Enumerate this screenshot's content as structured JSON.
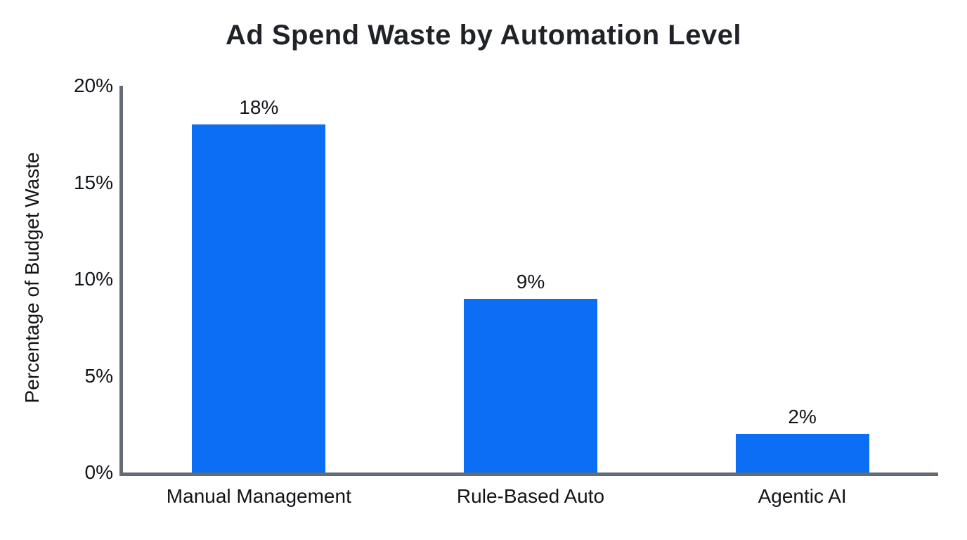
{
  "chart_data": {
    "type": "bar",
    "title": "Ad Spend Waste by Automation Level",
    "categories": [
      "Manual Management",
      "Rule-Based Auto",
      "Agentic AI"
    ],
    "values": [
      18,
      9,
      2
    ],
    "value_labels": [
      "18%",
      "9%",
      "2%"
    ],
    "xlabel": "",
    "ylabel": "Percentage of Budget Waste",
    "ylim": [
      0,
      20
    ],
    "yticks": [
      0,
      5,
      10,
      15,
      20
    ],
    "ytick_labels": [
      "0%",
      "5%",
      "10%",
      "15%",
      "20%"
    ],
    "grid": false,
    "legend": false,
    "bar_color": "#0b6ef5",
    "axis_color": "#636b76",
    "text_color": "#111418",
    "background_color": "#ffffff"
  }
}
